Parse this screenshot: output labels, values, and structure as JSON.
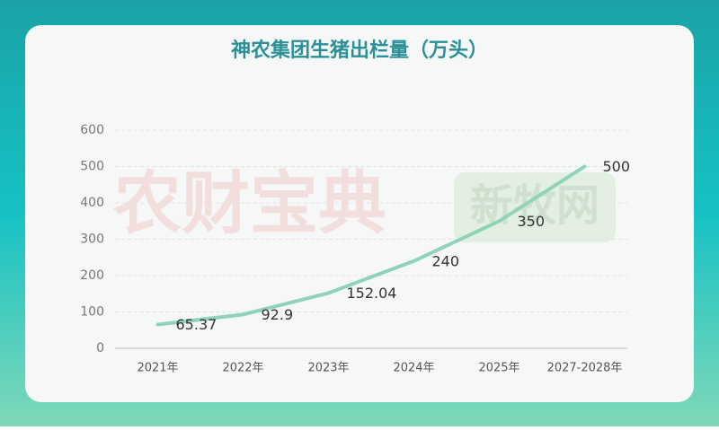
{
  "chart_data": {
    "type": "line",
    "title": "神农集团生猪出栏量（万头）",
    "categories": [
      "2021年",
      "2022年",
      "2023年",
      "2024年",
      "2025年",
      "2027-2028年"
    ],
    "series": [
      {
        "name": "生猪出栏量",
        "color": "#8fd3b8",
        "values": [
          65.37,
          92.9,
          152.04,
          240,
          350,
          500
        ]
      }
    ],
    "ylim": [
      0,
      600
    ],
    "yticks": [
      0,
      100,
      200,
      300,
      400,
      500,
      600
    ],
    "grid": true,
    "watermarks": [
      "农财宝典",
      "新牧网"
    ]
  }
}
